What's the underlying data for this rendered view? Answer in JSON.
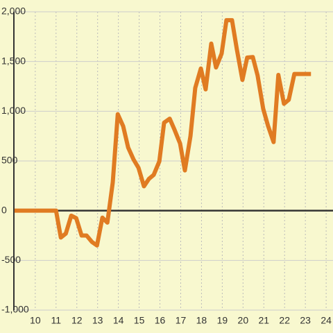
{
  "chart_data": {
    "type": "line",
    "x": [
      9.0,
      11.0,
      11.23,
      11.47,
      11.73,
      11.97,
      12.23,
      12.47,
      12.73,
      12.97,
      13.23,
      13.47,
      13.73,
      13.97,
      14.23,
      14.47,
      14.73,
      14.97,
      15.23,
      15.47,
      15.7,
      15.97,
      16.2,
      16.47,
      16.7,
      16.97,
      17.2,
      17.47,
      17.7,
      17.97,
      18.2,
      18.47,
      18.7,
      18.97,
      19.2,
      19.47,
      19.7,
      19.97,
      20.2,
      20.47,
      20.7,
      20.97,
      21.2,
      21.47,
      21.7,
      21.97,
      22.2,
      22.47,
      22.7,
      22.97,
      23.27
    ],
    "values": [
      0,
      0,
      -270,
      -230,
      -50,
      -75,
      -250,
      -250,
      -315,
      -350,
      -70,
      -120,
      285,
      970,
      850,
      635,
      515,
      430,
      245,
      320,
      360,
      495,
      885,
      925,
      815,
      675,
      405,
      750,
      1235,
      1430,
      1220,
      1680,
      1440,
      1580,
      1915,
      1915,
      1625,
      1315,
      1540,
      1545,
      1360,
      1025,
      855,
      690,
      1365,
      1075,
      1115,
      1375,
      1375,
      1375,
      1375
    ],
    "color": "#e07b22",
    "xlim": [
      8.97,
      24.33
    ],
    "xticks": [
      10,
      11,
      12,
      13,
      14,
      15,
      16,
      17,
      18,
      19,
      20,
      21,
      22,
      23,
      24
    ],
    "ylim": [
      -1000,
      2000
    ],
    "yticks": [
      {
        "value": -1000,
        "label": "-1,000"
      },
      -500,
      0,
      500,
      {
        "value": 1000,
        "label": "1,000"
      },
      {
        "value": 1500,
        "label": "1,500"
      },
      {
        "value": 2000,
        "label": "2,000"
      }
    ],
    "grid": true
  }
}
